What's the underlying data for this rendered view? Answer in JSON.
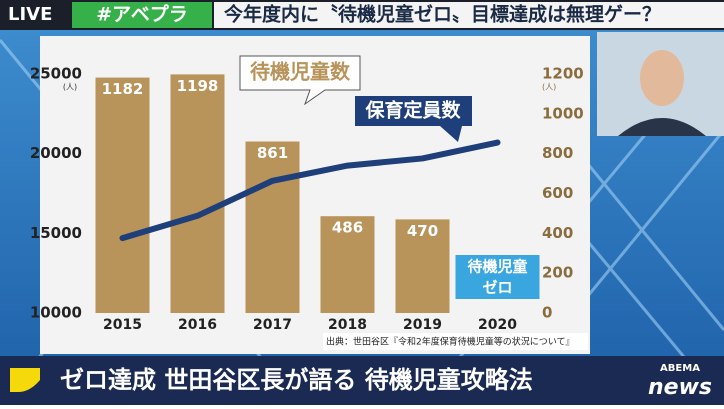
{
  "header": {
    "live": "LIVE",
    "hashtag": "#アベプラ",
    "headline": "今年度内に〝待機児童ゼロ〟目標達成は無理ゲー？"
  },
  "footer": {
    "caption": "ゼロ達成 世田谷区長が語る 待機児童攻略法",
    "logo_top": "ABEMA",
    "logo_bottom": "news"
  },
  "chart_data": {
    "type": "bar",
    "categories": [
      "2015",
      "2016",
      "2017",
      "2018",
      "2019",
      "2020"
    ],
    "series": [
      {
        "name": "待機児童数",
        "type": "bar",
        "axis": "y2",
        "color": "#b8935a",
        "values": [
          1182,
          1198,
          861,
          486,
          470,
          null
        ]
      },
      {
        "name": "保育定員数",
        "type": "line",
        "axis": "y",
        "color": "#1f3f7a",
        "values": [
          14700,
          16100,
          18300,
          19250,
          19700,
          20700
        ]
      }
    ],
    "ylim": [
      10000,
      25000
    ],
    "yticks": [
      10000,
      15000,
      20000,
      25000
    ],
    "y2lim": [
      0,
      1200
    ],
    "y2ticks": [
      0,
      200,
      400,
      600,
      800,
      1000,
      1200
    ],
    "y_unit": "(人)",
    "y2_unit": "(人)",
    "annotation": [
      "待機児童",
      "ゼロ"
    ],
    "source": "出典：世田谷区『令和2年度保育待機児童等の状況について』"
  }
}
